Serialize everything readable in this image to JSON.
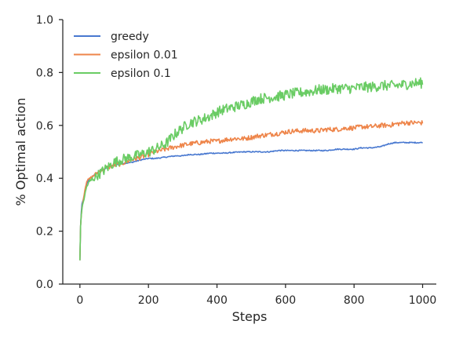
{
  "chart_data": {
    "type": "line",
    "xlabel": "Steps",
    "ylabel": "% Optimal action",
    "xlim": [
      -50,
      1040
    ],
    "ylim": [
      0.0,
      1.0
    ],
    "x_ticks": [
      0,
      200,
      400,
      600,
      800,
      1000
    ],
    "y_ticks": [
      0.0,
      0.2,
      0.4,
      0.6,
      0.8,
      1.0
    ],
    "x_tick_labels": [
      "0",
      "200",
      "400",
      "600",
      "800",
      "1000"
    ],
    "y_tick_labels": [
      "0.0",
      "0.2",
      "0.4",
      "0.6",
      "0.8",
      "1.0"
    ],
    "grid": false,
    "legend_position": "top-left",
    "series": [
      {
        "name": "greedy",
        "color": "#4878d0",
        "x": [
          0,
          2,
          5,
          10,
          15,
          20,
          30,
          40,
          50,
          60,
          80,
          100,
          120,
          150,
          180,
          200,
          220,
          250,
          280,
          300,
          320,
          350,
          380,
          400,
          420,
          450,
          480,
          500,
          520,
          550,
          580,
          600,
          620,
          650,
          680,
          700,
          720,
          750,
          780,
          800,
          820,
          850,
          880,
          900,
          920,
          950,
          980,
          1000
        ],
        "values": [
          0.09,
          0.22,
          0.3,
          0.32,
          0.35,
          0.38,
          0.4,
          0.41,
          0.42,
          0.43,
          0.44,
          0.45,
          0.455,
          0.46,
          0.47,
          0.475,
          0.475,
          0.48,
          0.485,
          0.485,
          0.49,
          0.49,
          0.495,
          0.495,
          0.495,
          0.498,
          0.5,
          0.5,
          0.5,
          0.5,
          0.505,
          0.505,
          0.505,
          0.505,
          0.505,
          0.505,
          0.505,
          0.51,
          0.51,
          0.51,
          0.515,
          0.515,
          0.52,
          0.53,
          0.535,
          0.535,
          0.535,
          0.535
        ]
      },
      {
        "name": "epsilon 0.01",
        "color": "#ee854a",
        "x": [
          0,
          2,
          5,
          10,
          15,
          20,
          30,
          40,
          50,
          60,
          80,
          100,
          120,
          150,
          180,
          200,
          220,
          250,
          280,
          300,
          320,
          350,
          380,
          400,
          420,
          450,
          480,
          500,
          520,
          550,
          580,
          600,
          620,
          650,
          680,
          700,
          720,
          750,
          780,
          800,
          820,
          850,
          880,
          900,
          920,
          950,
          980,
          1000
        ],
        "values": [
          0.09,
          0.22,
          0.28,
          0.32,
          0.36,
          0.39,
          0.4,
          0.41,
          0.42,
          0.43,
          0.44,
          0.45,
          0.455,
          0.47,
          0.48,
          0.49,
          0.5,
          0.51,
          0.52,
          0.525,
          0.53,
          0.535,
          0.54,
          0.54,
          0.545,
          0.55,
          0.55,
          0.555,
          0.56,
          0.565,
          0.57,
          0.575,
          0.578,
          0.58,
          0.58,
          0.58,
          0.585,
          0.585,
          0.59,
          0.59,
          0.595,
          0.595,
          0.6,
          0.6,
          0.605,
          0.61,
          0.61,
          0.61
        ]
      },
      {
        "name": "epsilon 0.1",
        "color": "#6acc64",
        "x": [
          0,
          2,
          5,
          10,
          15,
          20,
          30,
          40,
          50,
          60,
          80,
          100,
          120,
          150,
          180,
          200,
          220,
          250,
          280,
          300,
          320,
          350,
          380,
          400,
          420,
          450,
          480,
          500,
          520,
          550,
          580,
          600,
          620,
          650,
          680,
          700,
          720,
          750,
          780,
          800,
          820,
          850,
          880,
          900,
          920,
          950,
          980,
          1000
        ],
        "values": [
          0.09,
          0.22,
          0.28,
          0.31,
          0.34,
          0.37,
          0.39,
          0.4,
          0.41,
          0.42,
          0.44,
          0.46,
          0.47,
          0.48,
          0.49,
          0.5,
          0.51,
          0.53,
          0.57,
          0.59,
          0.61,
          0.62,
          0.635,
          0.65,
          0.66,
          0.67,
          0.68,
          0.69,
          0.7,
          0.705,
          0.71,
          0.715,
          0.72,
          0.725,
          0.73,
          0.735,
          0.735,
          0.74,
          0.74,
          0.74,
          0.745,
          0.745,
          0.75,
          0.75,
          0.75,
          0.755,
          0.76,
          0.76
        ]
      }
    ]
  }
}
